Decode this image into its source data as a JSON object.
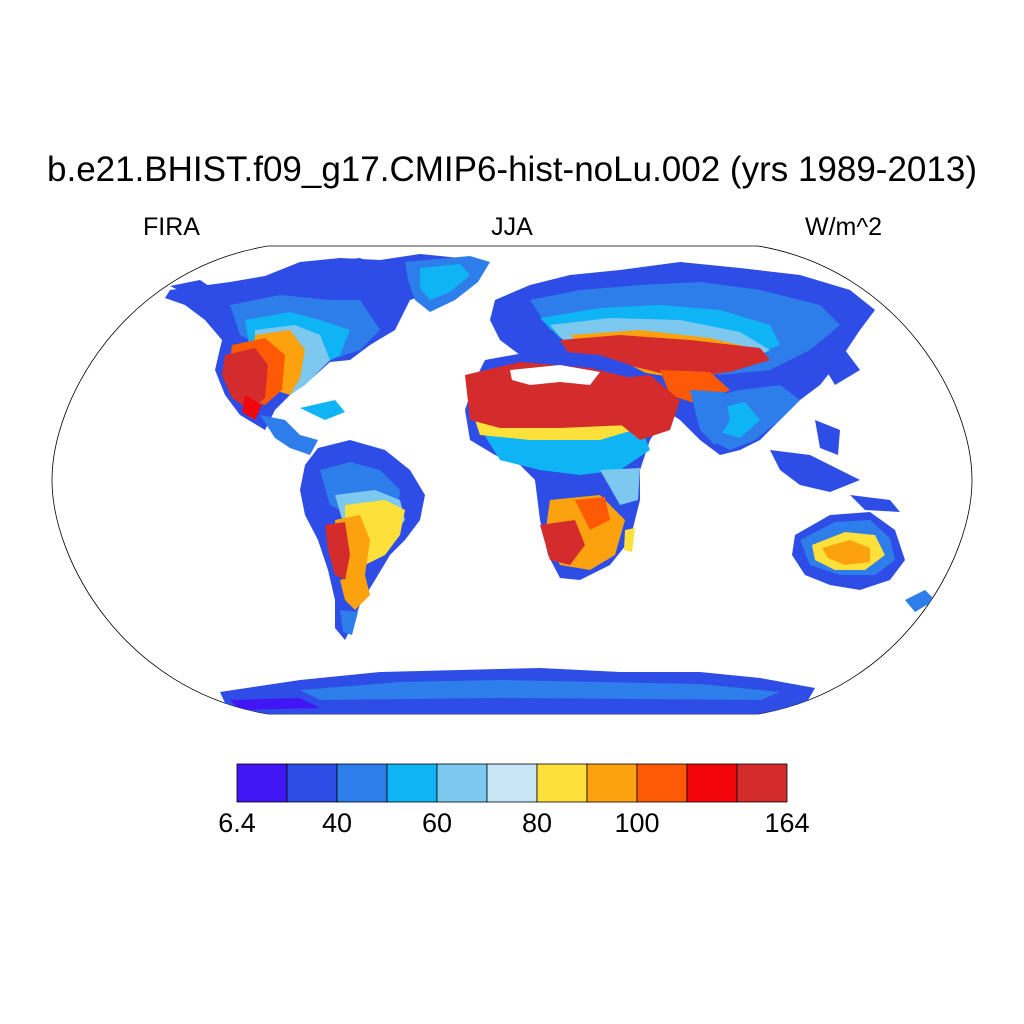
{
  "title": "b.e21.BHIST.f09_g17.CMIP6-hist-noLu.002 (yrs 1989-2013)",
  "subtitle_left": "FIRA",
  "subtitle_center": "JJA",
  "subtitle_right": "W/m^2",
  "colorbar": {
    "colors": [
      "#4215f5",
      "#2d4de6",
      "#2d7eea",
      "#0fb4f4",
      "#7cc8ef",
      "#c8e5f6",
      "#fde13a",
      "#fca20f",
      "#fe5a05",
      "#f2060c",
      "#d42c2c"
    ],
    "labels": [
      "6.4",
      "40",
      "60",
      "80",
      "100",
      "164"
    ],
    "label_boundary_index": [
      0,
      2,
      4,
      6,
      8,
      11
    ]
  }
}
